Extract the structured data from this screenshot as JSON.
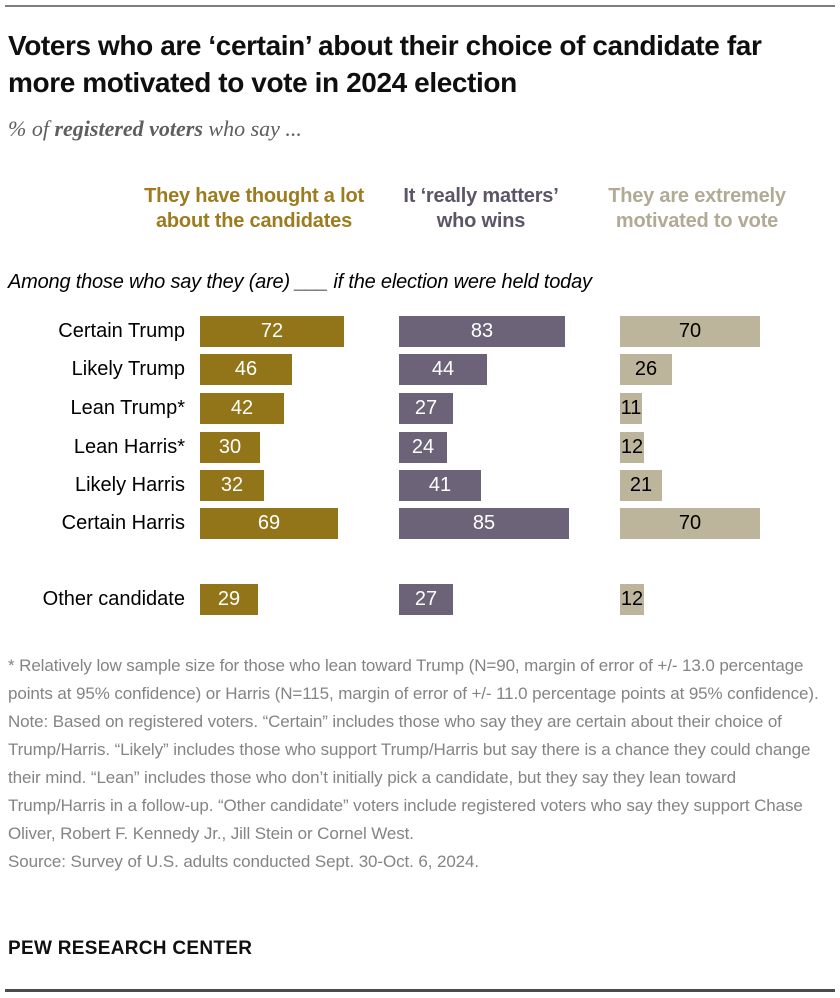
{
  "title": "Voters who are ‘certain’ about their choice of candidate far more motivated to vote in 2024 election",
  "subtitle": {
    "prefix": "% of ",
    "bold": "registered voters",
    "suffix": " who say ..."
  },
  "chart_data": {
    "type": "bar",
    "orientation": "horizontal",
    "annotation": "Among those who say they (are) ___ if the election were held today",
    "xlim": [
      0,
      100
    ],
    "unit": "% of registered voters",
    "categories": [
      "Certain Trump",
      "Likely Trump",
      "Lean Trump*",
      "Lean Harris*",
      "Likely Harris",
      "Certain Harris",
      "Other candidate"
    ],
    "columns": [
      {
        "id": "thought-a-lot",
        "line1": "They have thought a lot",
        "line2": "about the candidates",
        "header_color": "#9C7C1E",
        "bar_color": "#927519",
        "value_color": "#FFFFFF"
      },
      {
        "id": "really-matters",
        "line1": "It ‘really matters’",
        "line2": "who wins",
        "header_color": "#5C5568",
        "bar_color": "#6C6378",
        "value_color": "#FFFFFF"
      },
      {
        "id": "extremely-motivated",
        "line1": "They are extremely",
        "line2": "motivated to vote",
        "header_color": "#B1AA94",
        "bar_color": "#BCB59C",
        "value_color": "#000000"
      }
    ],
    "series": [
      {
        "name": "They have thought a lot about the candidates",
        "values": [
          72,
          46,
          42,
          30,
          32,
          69,
          29
        ]
      },
      {
        "name": "It ‘really matters’ who wins",
        "values": [
          83,
          44,
          27,
          24,
          41,
          85,
          27
        ]
      },
      {
        "name": "They are extremely motivated to vote",
        "values": [
          70,
          26,
          11,
          12,
          21,
          70,
          12
        ]
      }
    ]
  },
  "footnotes": {
    "asterisk": "* Relatively low sample size for those who lean toward Trump (N=90, margin of error of +/- 13.0 percentage points at 95% confidence) or Harris (N=115, margin of error of +/- 11.0 percentage points at 95% confidence).",
    "note": "Note: Based on registered voters. “Certain” includes those who say they are certain about their choice of Trump/Harris. “Likely” includes those who support Trump/Harris but say there is a chance they could change their mind. “Lean” includes those who don’t initially pick a candidate, but they say they lean toward Trump/Harris in a follow-up. “Other candidate” voters include registered voters who say they support Chase Oliver, Robert F. Kennedy Jr., Jill Stein or Cornel West.",
    "source": "Source: Survey of U.S. adults conducted Sept. 30-Oct. 6, 2024."
  },
  "branding": "PEW RESEARCH CENTER"
}
